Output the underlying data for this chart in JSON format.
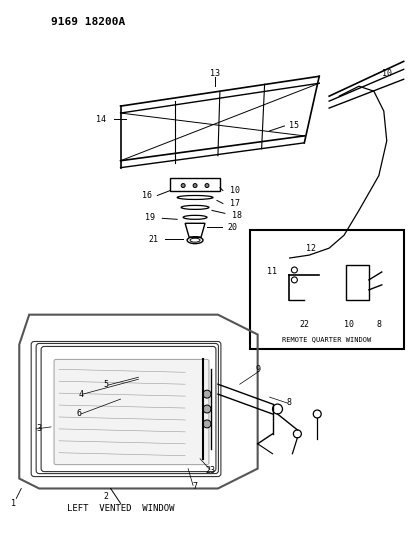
{
  "title_code": "9169 18200A",
  "bg_color": "#ffffff",
  "line_color": "#000000",
  "fig_width": 4.11,
  "fig_height": 5.33,
  "dpi": 100,
  "labels": {
    "left_vented_window": "LEFT  VENTED  WINDOW",
    "remote_quarter_window": "REMOTE QUARTER WINDOW"
  },
  "part_numbers": [
    1,
    2,
    3,
    4,
    5,
    6,
    7,
    8,
    9,
    10,
    11,
    12,
    13,
    14,
    15,
    16,
    17,
    18,
    19,
    20,
    21,
    22,
    23
  ],
  "header": "9169 18200A"
}
